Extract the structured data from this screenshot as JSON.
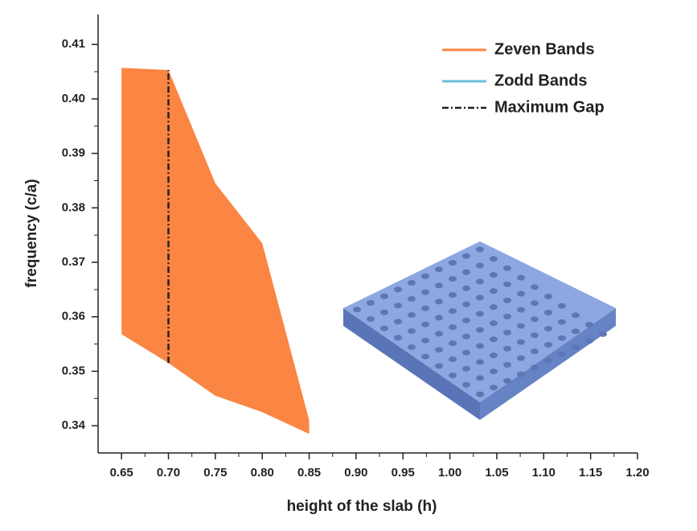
{
  "chart_data": {
    "type": "band",
    "x_label": "height of the slab (h)",
    "y_label": "frequency (c/a)",
    "xlim": [
      0.625,
      1.2
    ],
    "ylim": [
      0.335,
      0.4155
    ],
    "xticks": [
      {
        "value": 0.65,
        "label": "0.65"
      },
      {
        "value": 0.7,
        "label": "0.70"
      },
      {
        "value": 0.75,
        "label": "0.75"
      },
      {
        "value": 0.8,
        "label": "0.80"
      },
      {
        "value": 0.85,
        "label": "0.85"
      },
      {
        "value": 0.9,
        "label": "0.90"
      },
      {
        "value": 0.95,
        "label": "0.95"
      },
      {
        "value": 1.0,
        "label": "1.00"
      },
      {
        "value": 1.05,
        "label": "1.05"
      },
      {
        "value": 1.1,
        "label": "1.10"
      },
      {
        "value": 1.15,
        "label": "1.15"
      },
      {
        "value": 1.2,
        "label": "1.20"
      }
    ],
    "yticks": [
      0.34,
      0.35,
      0.36,
      0.37,
      0.38,
      0.39,
      {
        "value": 0.4,
        "label": "0.40"
      },
      0.41
    ],
    "series": [
      {
        "name": "Zeven Bands",
        "color": "#fb8542",
        "x": [
          0.65,
          0.7,
          0.75,
          0.8,
          0.85
        ],
        "upper": [
          0.4057,
          0.4053,
          0.3845,
          0.3735,
          0.341
        ],
        "lower": [
          0.3568,
          0.3515,
          0.3455,
          0.3425,
          0.3385
        ]
      },
      {
        "name": "Zodd Bands",
        "color": "#6bbfdc"
      }
    ],
    "max_gap": {
      "name": "Maximum Gap",
      "color": "#222222",
      "x": 0.7,
      "y": [
        0.3515,
        0.4053
      ]
    },
    "legend": "upper right"
  }
}
